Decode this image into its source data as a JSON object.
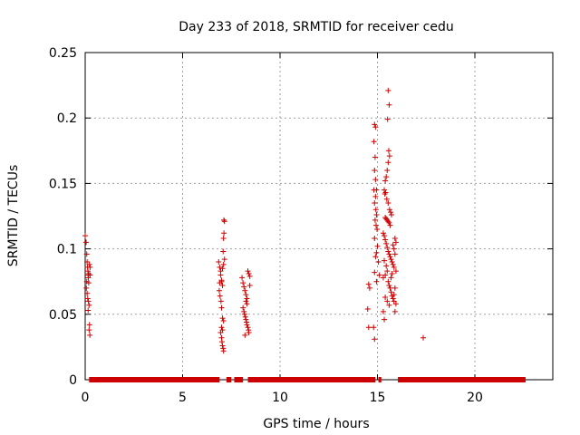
{
  "chart_data": {
    "type": "scatter",
    "title": "Day 233 of 2018, SRMTID for receiver cedu",
    "xlabel": "GPS time / hours",
    "ylabel": "SRMTID / TECUs",
    "xlim": [
      0,
      24
    ],
    "ylim": [
      0,
      0.25
    ],
    "xticks": [
      0,
      5,
      10,
      15,
      20
    ],
    "yticks": [
      0,
      0.05,
      0.1,
      0.15,
      0.2,
      0.25
    ],
    "xtick_labels": [
      "0",
      "5",
      "10",
      "15",
      "20"
    ],
    "ytick_labels": [
      "0",
      "0.05",
      "0.1",
      "0.15",
      "0.2",
      "0.25"
    ],
    "grid": true,
    "marker": "+",
    "series": [
      {
        "name": "SRMTID",
        "color": "#cc0000",
        "points": [
          [
            0.0,
            0.11
          ],
          [
            0.05,
            0.105
          ],
          [
            0.08,
            0.096
          ],
          [
            0.1,
            0.09
          ],
          [
            0.12,
            0.086
          ],
          [
            0.14,
            0.083
          ],
          [
            0.15,
            0.08
          ],
          [
            0.16,
            0.078
          ],
          [
            0.18,
            0.074
          ],
          [
            0.06,
            0.07
          ],
          [
            0.1,
            0.066
          ],
          [
            0.13,
            0.062
          ],
          [
            0.16,
            0.06
          ],
          [
            0.2,
            0.057
          ],
          [
            0.15,
            0.053
          ],
          [
            0.22,
            0.042
          ],
          [
            0.2,
            0.038
          ],
          [
            0.24,
            0.034
          ],
          [
            0.25,
            0.086
          ],
          [
            0.22,
            0.088
          ],
          [
            0.18,
            0.081
          ],
          [
            0.08,
            0.075
          ],
          [
            0.25,
            0.08
          ],
          [
            6.85,
            0.09
          ],
          [
            6.9,
            0.086
          ],
          [
            6.95,
            0.08
          ],
          [
            7.0,
            0.076
          ],
          [
            7.05,
            0.072
          ],
          [
            6.88,
            0.068
          ],
          [
            6.92,
            0.064
          ],
          [
            6.97,
            0.06
          ],
          [
            7.0,
            0.055
          ],
          [
            7.05,
            0.047
          ],
          [
            7.1,
            0.045
          ],
          [
            7.12,
            0.122
          ],
          [
            7.15,
            0.121
          ],
          [
            7.12,
            0.112
          ],
          [
            7.1,
            0.108
          ],
          [
            7.08,
            0.098
          ],
          [
            7.15,
            0.092
          ],
          [
            7.1,
            0.088
          ],
          [
            7.05,
            0.085
          ],
          [
            6.95,
            0.083
          ],
          [
            7.0,
            0.075
          ],
          [
            6.9,
            0.074
          ],
          [
            6.95,
            0.036
          ],
          [
            7.0,
            0.032
          ],
          [
            7.02,
            0.029
          ],
          [
            7.05,
            0.026
          ],
          [
            7.08,
            0.024
          ],
          [
            7.1,
            0.022
          ],
          [
            7.0,
            0.04
          ],
          [
            7.05,
            0.038
          ],
          [
            8.05,
            0.078
          ],
          [
            8.1,
            0.074
          ],
          [
            8.15,
            0.071
          ],
          [
            8.2,
            0.068
          ],
          [
            8.25,
            0.065
          ],
          [
            8.3,
            0.062
          ],
          [
            8.35,
            0.083
          ],
          [
            8.4,
            0.081
          ],
          [
            8.45,
            0.079
          ],
          [
            8.1,
            0.055
          ],
          [
            8.15,
            0.052
          ],
          [
            8.18,
            0.05
          ],
          [
            8.22,
            0.048
          ],
          [
            8.25,
            0.046
          ],
          [
            8.28,
            0.044
          ],
          [
            8.3,
            0.042
          ],
          [
            8.35,
            0.04
          ],
          [
            8.38,
            0.038
          ],
          [
            8.4,
            0.036
          ],
          [
            8.2,
            0.034
          ],
          [
            8.25,
            0.06
          ],
          [
            8.3,
            0.058
          ],
          [
            8.45,
            0.072
          ],
          [
            14.55,
            0.073
          ],
          [
            14.6,
            0.07
          ],
          [
            14.5,
            0.054
          ],
          [
            14.55,
            0.04
          ],
          [
            14.85,
            0.195
          ],
          [
            14.9,
            0.193
          ],
          [
            14.82,
            0.182
          ],
          [
            14.88,
            0.17
          ],
          [
            14.85,
            0.16
          ],
          [
            14.9,
            0.153
          ],
          [
            14.82,
            0.145
          ],
          [
            14.95,
            0.145
          ],
          [
            14.9,
            0.14
          ],
          [
            14.85,
            0.135
          ],
          [
            14.92,
            0.13
          ],
          [
            14.95,
            0.126
          ],
          [
            14.88,
            0.122
          ],
          [
            14.93,
            0.118
          ],
          [
            14.98,
            0.115
          ],
          [
            14.85,
            0.108
          ],
          [
            15.0,
            0.102
          ],
          [
            14.95,
            0.097
          ],
          [
            14.9,
            0.094
          ],
          [
            15.05,
            0.09
          ],
          [
            14.85,
            0.082
          ],
          [
            15.1,
            0.08
          ],
          [
            14.95,
            0.075
          ],
          [
            14.8,
            0.04
          ],
          [
            14.85,
            0.031
          ],
          [
            15.55,
            0.221
          ],
          [
            15.6,
            0.21
          ],
          [
            15.52,
            0.199
          ],
          [
            15.58,
            0.175
          ],
          [
            15.62,
            0.171
          ],
          [
            15.55,
            0.166
          ],
          [
            15.5,
            0.16
          ],
          [
            15.45,
            0.155
          ],
          [
            15.4,
            0.152
          ],
          [
            15.35,
            0.145
          ],
          [
            15.38,
            0.142
          ],
          [
            15.42,
            0.143
          ],
          [
            15.48,
            0.138
          ],
          [
            15.55,
            0.135
          ],
          [
            15.62,
            0.13
          ],
          [
            15.68,
            0.128
          ],
          [
            15.72,
            0.126
          ],
          [
            15.4,
            0.124
          ],
          [
            15.45,
            0.123
          ],
          [
            15.5,
            0.122
          ],
          [
            15.55,
            0.121
          ],
          [
            15.6,
            0.12
          ],
          [
            15.65,
            0.118
          ],
          [
            15.3,
            0.112
          ],
          [
            15.35,
            0.11
          ],
          [
            15.4,
            0.107
          ],
          [
            15.45,
            0.104
          ],
          [
            15.5,
            0.101
          ],
          [
            15.55,
            0.098
          ],
          [
            15.6,
            0.096
          ],
          [
            15.65,
            0.094
          ],
          [
            15.7,
            0.092
          ],
          [
            15.75,
            0.09
          ],
          [
            15.8,
            0.088
          ],
          [
            15.85,
            0.086
          ],
          [
            15.9,
            0.108
          ],
          [
            15.95,
            0.105
          ],
          [
            15.8,
            0.103
          ],
          [
            15.85,
            0.1
          ],
          [
            15.9,
            0.096
          ],
          [
            15.95,
            0.083
          ],
          [
            15.35,
            0.091
          ],
          [
            15.45,
            0.087
          ],
          [
            15.5,
            0.083
          ],
          [
            15.4,
            0.08
          ],
          [
            15.3,
            0.078
          ],
          [
            15.55,
            0.075
          ],
          [
            15.6,
            0.072
          ],
          [
            15.65,
            0.07
          ],
          [
            15.7,
            0.067
          ],
          [
            15.75,
            0.064
          ],
          [
            15.8,
            0.062
          ],
          [
            15.85,
            0.06
          ],
          [
            15.4,
            0.063
          ],
          [
            15.5,
            0.06
          ],
          [
            15.6,
            0.057
          ],
          [
            15.3,
            0.052
          ],
          [
            15.35,
            0.046
          ],
          [
            15.7,
            0.078
          ],
          [
            15.75,
            0.081
          ],
          [
            15.9,
            0.07
          ],
          [
            15.85,
            0.065
          ],
          [
            15.95,
            0.058
          ],
          [
            15.9,
            0.052
          ],
          [
            17.35,
            0.032
          ]
        ],
        "zero_bands": [
          [
            0.2,
            6.9
          ],
          [
            7.25,
            7.5
          ],
          [
            7.65,
            8.1
          ],
          [
            8.35,
            14.9
          ],
          [
            15.05,
            15.2
          ],
          [
            16.05,
            22.6
          ]
        ]
      }
    ]
  }
}
